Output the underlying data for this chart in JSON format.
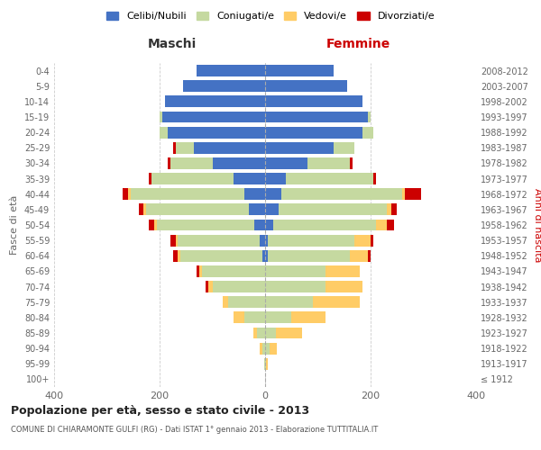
{
  "age_groups": [
    "100+",
    "95-99",
    "90-94",
    "85-89",
    "80-84",
    "75-79",
    "70-74",
    "65-69",
    "60-64",
    "55-59",
    "50-54",
    "45-49",
    "40-44",
    "35-39",
    "30-34",
    "25-29",
    "20-24",
    "15-19",
    "10-14",
    "5-9",
    "0-4"
  ],
  "birth_years": [
    "≤ 1912",
    "1913-1917",
    "1918-1922",
    "1923-1927",
    "1928-1932",
    "1933-1937",
    "1938-1942",
    "1943-1947",
    "1948-1952",
    "1953-1957",
    "1958-1962",
    "1963-1967",
    "1968-1972",
    "1973-1977",
    "1978-1982",
    "1983-1987",
    "1988-1992",
    "1993-1997",
    "1998-2002",
    "2003-2007",
    "2008-2012"
  ],
  "male": {
    "celibi": [
      0,
      0,
      0,
      0,
      0,
      0,
      0,
      0,
      5,
      10,
      20,
      30,
      40,
      60,
      100,
      135,
      185,
      195,
      190,
      155,
      130
    ],
    "coniugati": [
      0,
      2,
      5,
      15,
      40,
      70,
      100,
      120,
      155,
      155,
      185,
      195,
      215,
      155,
      80,
      35,
      15,
      5,
      0,
      0,
      0
    ],
    "vedovi": [
      0,
      0,
      5,
      8,
      20,
      10,
      8,
      5,
      5,
      5,
      5,
      5,
      5,
      0,
      0,
      0,
      0,
      0,
      0,
      0,
      0
    ],
    "divorziati": [
      0,
      0,
      0,
      0,
      0,
      0,
      5,
      5,
      10,
      10,
      10,
      10,
      10,
      5,
      5,
      5,
      0,
      0,
      0,
      0,
      0
    ]
  },
  "female": {
    "nubili": [
      0,
      0,
      0,
      0,
      0,
      0,
      0,
      0,
      5,
      5,
      15,
      25,
      30,
      40,
      80,
      130,
      185,
      195,
      185,
      155,
      130
    ],
    "coniugate": [
      0,
      2,
      8,
      20,
      50,
      90,
      115,
      115,
      155,
      165,
      195,
      205,
      230,
      165,
      80,
      40,
      20,
      5,
      0,
      0,
      0
    ],
    "vedove": [
      0,
      3,
      15,
      50,
      65,
      90,
      70,
      65,
      35,
      30,
      20,
      10,
      5,
      0,
      0,
      0,
      0,
      0,
      0,
      0,
      0
    ],
    "divorziate": [
      0,
      0,
      0,
      0,
      0,
      0,
      0,
      0,
      5,
      5,
      15,
      10,
      30,
      5,
      5,
      0,
      0,
      0,
      0,
      0,
      0
    ]
  },
  "colors": {
    "celibi_nubili": "#4472C4",
    "coniugati": "#C5D9A0",
    "vedovi": "#FFCC66",
    "divorziati": "#CC0000"
  },
  "title": "Popolazione per età, sesso e stato civile - 2013",
  "subtitle": "COMUNE DI CHIARAMONTE GULFI (RG) - Dati ISTAT 1° gennaio 2013 - Elaborazione TUTTITALIA.IT",
  "xlim": 400,
  "legend_labels": [
    "Celibi/Nubili",
    "Coniugati/e",
    "Vedovi/e",
    "Divorziati/e"
  ],
  "ylabel_left": "Fasce di età",
  "ylabel_right": "Anni di nascita",
  "xlabel_maschi": "Maschi",
  "xlabel_femmine": "Femmine",
  "femmine_color": "#CC0000",
  "maschi_color": "#333333"
}
